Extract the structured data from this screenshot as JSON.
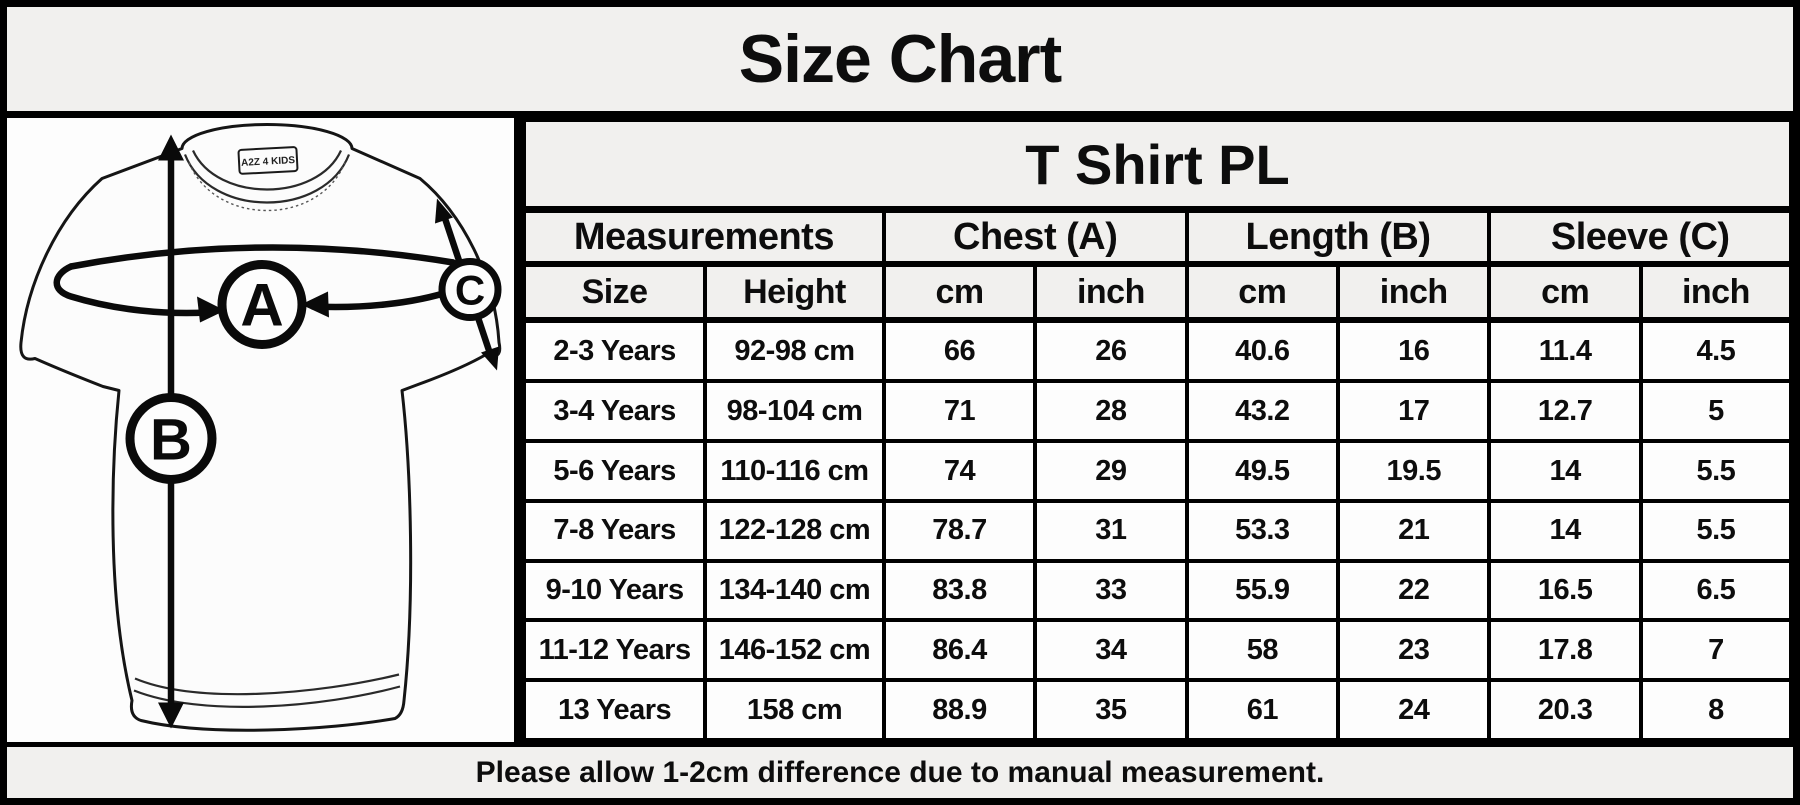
{
  "title": "Size Chart",
  "diagram": {
    "brand_label": "A2Z 4 KIDS",
    "markers": {
      "chest": "A",
      "length": "B",
      "sleeve": "C"
    }
  },
  "table": {
    "title": "T Shirt PL",
    "group_headers": {
      "measurements": "Measurements",
      "chest": "Chest (A)",
      "length": "Length (B)",
      "sleeve": "Sleeve (C)"
    },
    "sub_headers": {
      "size": "Size",
      "height": "Height",
      "cm": "cm",
      "inch": "inch"
    },
    "rows": [
      {
        "size": "2-3 Years",
        "height": "92-98 cm",
        "chest_cm": "66",
        "chest_inch": "26",
        "length_cm": "40.6",
        "length_inch": "16",
        "sleeve_cm": "11.4",
        "sleeve_inch": "4.5"
      },
      {
        "size": "3-4 Years",
        "height": "98-104 cm",
        "chest_cm": "71",
        "chest_inch": "28",
        "length_cm": "43.2",
        "length_inch": "17",
        "sleeve_cm": "12.7",
        "sleeve_inch": "5"
      },
      {
        "size": "5-6 Years",
        "height": "110-116 cm",
        "chest_cm": "74",
        "chest_inch": "29",
        "length_cm": "49.5",
        "length_inch": "19.5",
        "sleeve_cm": "14",
        "sleeve_inch": "5.5"
      },
      {
        "size": "7-8 Years",
        "height": "122-128 cm",
        "chest_cm": "78.7",
        "chest_inch": "31",
        "length_cm": "53.3",
        "length_inch": "21",
        "sleeve_cm": "14",
        "sleeve_inch": "5.5"
      },
      {
        "size": "9-10 Years",
        "height": "134-140 cm",
        "chest_cm": "83.8",
        "chest_inch": "33",
        "length_cm": "55.9",
        "length_inch": "22",
        "sleeve_cm": "16.5",
        "sleeve_inch": "6.5"
      },
      {
        "size": "11-12 Years",
        "height": "146-152 cm",
        "chest_cm": "86.4",
        "chest_inch": "34",
        "length_cm": "58",
        "length_inch": "23",
        "sleeve_cm": "17.8",
        "sleeve_inch": "7"
      },
      {
        "size": "13 Years",
        "height": "158 cm",
        "chest_cm": "88.9",
        "chest_inch": "35",
        "length_cm": "61",
        "length_inch": "24",
        "sleeve_cm": "20.3",
        "sleeve_inch": "8"
      }
    ]
  },
  "footer": {
    "note": "Please allow 1-2cm difference due to manual measurement."
  },
  "colors": {
    "background": "#f1f0ee",
    "cell_background": "#fdfdfd",
    "border": "#000000",
    "text": "#0d0d0d"
  }
}
